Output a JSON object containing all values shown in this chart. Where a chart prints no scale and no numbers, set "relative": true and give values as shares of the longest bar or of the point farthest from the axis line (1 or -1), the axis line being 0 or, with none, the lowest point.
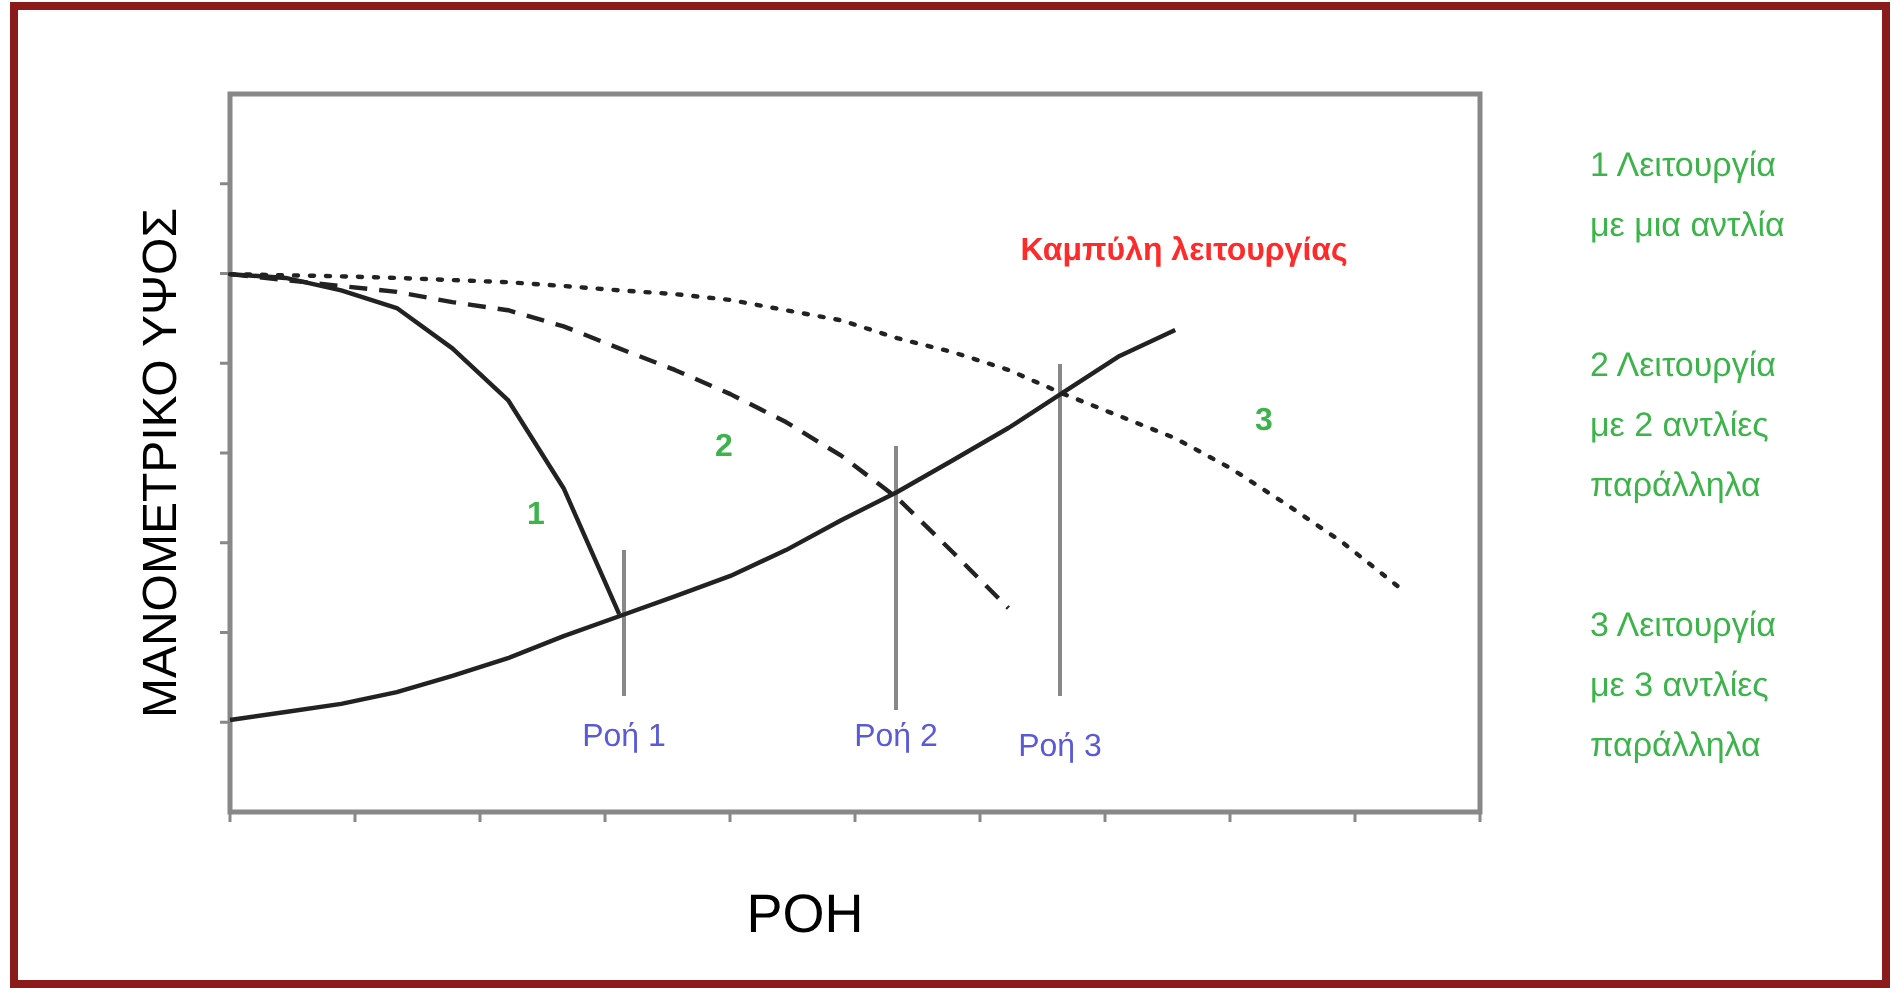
{
  "chart_data": {
    "type": "line",
    "relative": true,
    "xlabel": "ΡΟΗ",
    "ylabel": "ΜΑΝΟΜΕΤΡΙΚΟ ΥΨΟΣ",
    "categories": [
      null,
      null,
      null,
      null,
      null,
      null,
      null,
      null,
      null,
      null,
      null,
      null,
      null,
      null,
      null,
      null,
      null,
      null,
      null,
      null,
      null,
      null,
      null
    ],
    "grid": false,
    "marker": "none",
    "series": [
      {
        "name": "1",
        "color": "#222222",
        "line_style": "solid",
        "values": [
          1,
          0.993,
          0.97,
          0.937,
          0.862,
          0.766,
          0.602,
          0.368,
          null,
          null,
          null,
          null,
          null,
          null,
          null,
          null,
          null,
          null,
          null,
          null,
          null,
          null,
          null
        ]
      },
      {
        "name": "2",
        "color": "#222222",
        "line_style": "dashed",
        "values": [
          1,
          0.989,
          0.978,
          0.967,
          0.948,
          0.933,
          0.903,
          0.862,
          0.822,
          0.777,
          0.725,
          0.662,
          0.584,
          0.483,
          0.379,
          null,
          null,
          null,
          null,
          null,
          null,
          null,
          null
        ]
      },
      {
        "name": "3",
        "color": "#222222",
        "line_style": "dotted",
        "values": [
          1,
          0.998,
          0.996,
          0.993,
          0.989,
          0.985,
          0.978,
          0.97,
          0.963,
          0.952,
          0.933,
          0.914,
          0.881,
          0.855,
          0.822,
          0.777,
          0.736,
          0.695,
          0.639,
          0.572,
          0.502,
          0.42,
          null
        ]
      },
      {
        "name": "Καμπύλη λειτουργίας",
        "color": "#222222",
        "line_style": "solid",
        "values": [
          0.171,
          0.186,
          0.201,
          0.223,
          0.253,
          0.286,
          0.327,
          0.364,
          0.401,
          0.439,
          0.487,
          0.543,
          0.595,
          0.654,
          0.714,
          0.781,
          0.848,
          0.896,
          null,
          null,
          null,
          null,
          null
        ]
      }
    ],
    "annotations": [
      "1 Λειτουργία\nμε μια αντλία",
      "2 Λειτουργία\nμε 2 αντλίες\nπαράλληλα",
      "3 Λειτουργία\nμε 3 αντλίες\nπαράλληλα",
      "Ροή 1",
      "Ροή 2",
      "Ροή 3"
    ]
  }
}
